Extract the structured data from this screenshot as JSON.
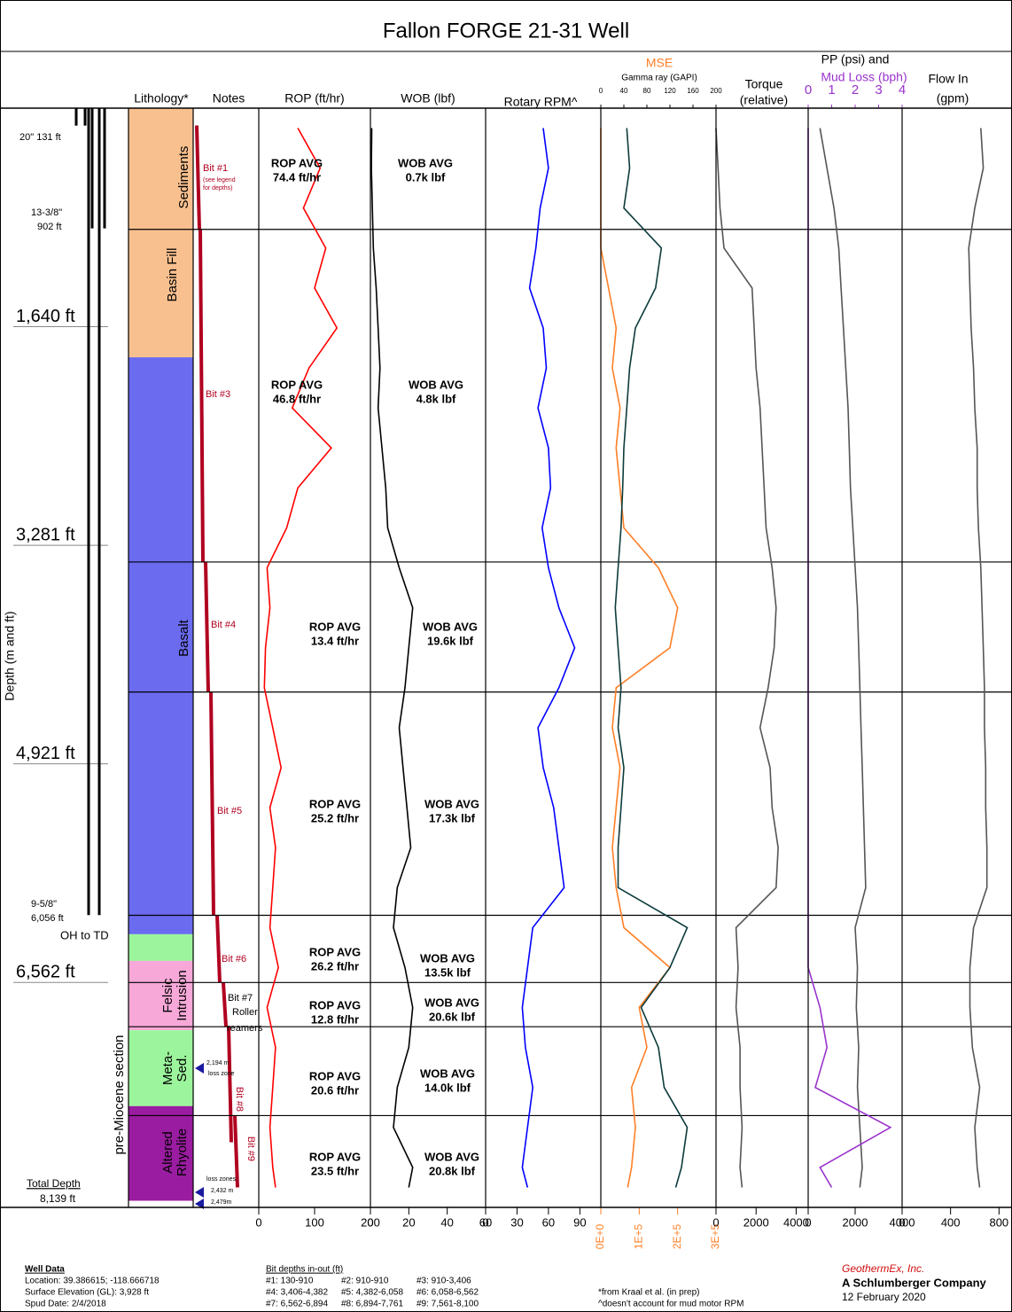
{
  "title": "Fallon FORGE 21-31 Well",
  "depth_axis": {
    "label": "Depth (m and ft)",
    "lim": [
      0,
      8250
    ],
    "ticks": [
      {
        "value": 1640,
        "label": "1,640 ft"
      },
      {
        "value": 3281,
        "label": "3,281 ft"
      },
      {
        "value": 4921,
        "label": "4,921 ft"
      },
      {
        "value": 6562,
        "label": "6,562 ft"
      }
    ],
    "values": [
      150,
      450,
      750,
      1050,
      1350,
      1650,
      1950,
      2250,
      2550,
      2850,
      3150,
      3450,
      3750,
      4050,
      4350,
      4650,
      4950,
      5250,
      5550,
      5850,
      6150,
      6450,
      6750,
      7050,
      7350,
      7650,
      7950,
      8100
    ]
  },
  "casing": [
    {
      "labels": [
        "20\" 131 ft"
      ],
      "depth": 131
    },
    {
      "labels": [
        "13-3/8\"",
        "902 ft"
      ],
      "depth": 902
    },
    {
      "labels": [
        "9-5/8\"",
        "6,056 ft"
      ],
      "depth": 6056
    }
  ],
  "open_hole": "OH to TD",
  "total_depth": [
    "Total Depth",
    "8,139 ft"
  ],
  "lithology": {
    "title": "Lithology*",
    "section": "pre-Miocene section",
    "units": [
      {
        "labels": [
          "Sediments",
          "Basin Fill"
        ],
        "top": 0,
        "bottom": 1870,
        "color": "#f9c08f"
      },
      {
        "labels": [
          "Basalt"
        ],
        "top": 1870,
        "bottom": 6200,
        "color": "#6b6bf0"
      },
      {
        "labels": [],
        "top": 6200,
        "bottom": 6400,
        "color": "#9cf59c"
      },
      {
        "labels": [
          "Felsic",
          "Intrusion"
        ],
        "top": 6400,
        "bottom": 6920,
        "color": "#f7a8d8"
      },
      {
        "labels": [
          "Meta-",
          "Sed."
        ],
        "top": 6920,
        "bottom": 7490,
        "color": "#9cf59c"
      },
      {
        "labels": [
          "Altered",
          "Rhyolite"
        ],
        "top": 7490,
        "bottom": 8200,
        "color": "#9a1ca0"
      }
    ]
  },
  "notes": {
    "title": "Notes",
    "color": "#b00020",
    "bit_runs": [
      [
        130,
        910
      ],
      [
        910,
        3406
      ],
      [
        3406,
        4382
      ],
      [
        4382,
        6058
      ],
      [
        6058,
        6562
      ],
      [
        6562,
        6894
      ],
      [
        6894,
        7761
      ],
      [
        7561,
        8100
      ]
    ],
    "texts": [
      "Bit #1",
      "(see legend",
      "for depths)",
      "Bit #3",
      "Bit #4",
      "Bit #5",
      "Bit #6",
      "Bit #7",
      "Roller",
      "reamers",
      "Bit #8",
      "Bit #9",
      "2,194 m",
      "loss zone",
      "loss zones:",
      "2,432 m",
      "2,479m"
    ]
  },
  "averages": [
    {
      "rop": [
        "ROP AVG",
        "74.4 ft/hr"
      ],
      "wob": [
        "WOB AVG",
        "0.7k lbf"
      ]
    },
    {
      "rop": [
        "ROP AVG",
        "46.8 ft/hr"
      ],
      "wob": [
        "WOB AVG",
        "4.8k lbf"
      ]
    },
    {
      "rop": [
        "ROP AVG",
        "13.4 ft/hr"
      ],
      "wob": [
        "WOB AVG",
        "19.6k lbf"
      ]
    },
    {
      "rop": [
        "ROP AVG",
        "25.2 ft/hr"
      ],
      "wob": [
        "WOB AVG",
        "17.3k lbf"
      ]
    },
    {
      "rop": [
        "ROP AVG",
        "26.2 ft/hr"
      ],
      "wob": [
        "WOB AVG",
        "13.5k lbf"
      ]
    },
    {
      "rop": [
        "ROP AVG",
        "12.8 ft/hr"
      ],
      "wob": [
        "WOB AVG",
        "20.6k lbf"
      ]
    },
    {
      "rop": [
        "ROP AVG",
        "20.6 ft/hr"
      ],
      "wob": [
        "WOB AVG",
        "14.0k lbf"
      ]
    },
    {
      "rop": [
        "ROP AVG",
        "23.5 ft/hr"
      ],
      "wob": [
        "WOB AVG",
        "20.8k lbf"
      ]
    }
  ],
  "chart_data": [
    {
      "type": "line",
      "title": "ROP (ft/hr)",
      "xlim": [
        0,
        200
      ],
      "xticks": [
        0,
        100,
        200
      ],
      "series": [
        {
          "color": "#ff0000",
          "values": [
            70,
            110,
            80,
            120,
            100,
            140,
            90,
            60,
            130,
            70,
            50,
            15,
            20,
            12,
            10,
            25,
            40,
            20,
            30,
            25,
            20,
            35,
            15,
            30,
            25,
            20,
            25,
            30
          ]
        }
      ]
    },
    {
      "type": "line",
      "title": "WOB (lbf)",
      "xlim": [
        0,
        60
      ],
      "xticks": [
        0,
        20,
        40,
        60
      ],
      "series": [
        {
          "color": "#000000",
          "values": [
            0.7,
            0.5,
            1,
            1.5,
            3,
            4,
            5,
            4,
            6,
            8,
            9,
            15,
            22,
            20,
            18,
            15,
            17,
            19,
            21,
            14,
            12,
            18,
            22,
            20,
            14,
            12,
            22,
            20
          ]
        }
      ]
    },
    {
      "type": "line",
      "title": "Rotary RPM^",
      "xlim": [
        0,
        110
      ],
      "xticks": [
        0,
        30,
        60,
        90
      ],
      "series": [
        {
          "color": "#0000ff",
          "values": [
            55,
            60,
            52,
            48,
            42,
            55,
            58,
            50,
            60,
            62,
            54,
            60,
            70,
            85,
            70,
            50,
            55,
            65,
            70,
            75,
            45,
            40,
            35,
            38,
            45,
            40,
            35,
            40
          ]
        }
      ]
    },
    {
      "type": "line",
      "xlim": [
        0,
        200
      ],
      "xticks": [
        0,
        40,
        80,
        120,
        160,
        200
      ],
      "x2lim": [
        0,
        300000
      ],
      "x2ticks": [
        {
          "value": 0,
          "label": "0E+0"
        },
        {
          "value": 100000,
          "label": "1E+5"
        },
        {
          "value": 200000,
          "label": "2E+5"
        },
        {
          "value": 300000,
          "label": "3E+5"
        }
      ],
      "series": [
        {
          "name": "MSE",
          "color": "#ff7f27",
          "axis": "x2",
          "values": [
            0,
            0,
            0,
            0,
            20000,
            40000,
            30000,
            50000,
            40000,
            50000,
            60000,
            150000,
            200000,
            180000,
            40000,
            30000,
            50000,
            40000,
            30000,
            40000,
            60000,
            180000,
            100000,
            120000,
            80000,
            90000,
            80000,
            70000
          ]
        },
        {
          "name": "Gamma ray (GAPI)",
          "color": "#0d3b3b",
          "values": [
            45,
            50,
            40,
            105,
            95,
            60,
            50,
            45,
            40,
            38,
            35,
            30,
            25,
            30,
            35,
            30,
            40,
            35,
            30,
            30,
            150,
            120,
            70,
            100,
            110,
            150,
            140,
            130
          ]
        }
      ]
    },
    {
      "type": "line",
      "title": [
        "Torque",
        "(relative)"
      ],
      "xlim": [
        0,
        4600
      ],
      "xticks": [
        0,
        2000,
        4000
      ],
      "series": [
        {
          "color": "#555555",
          "values": [
            0,
            100,
            200,
            400,
            1800,
            1900,
            2000,
            2200,
            2300,
            2400,
            2500,
            2800,
            3000,
            2900,
            2600,
            2200,
            2700,
            2800,
            3100,
            3000,
            1000,
            1100,
            1000,
            1200,
            1200,
            1300,
            1200,
            1300
          ]
        }
      ]
    },
    {
      "type": "line",
      "title": "PP (psi) and",
      "xlim": [
        0,
        4000
      ],
      "xticks": [
        0,
        2000,
        4000
      ],
      "x2lim": [
        0,
        4
      ],
      "x2ticks": [
        0,
        1,
        2,
        3,
        4
      ],
      "series": [
        {
          "color": "#555555",
          "values": [
            500,
            800,
            1100,
            1300,
            1400,
            1500,
            1600,
            1700,
            1750,
            1800,
            1900,
            2000,
            2100,
            2150,
            2200,
            2250,
            2300,
            2350,
            2400,
            2450,
            2000,
            2100,
            2050,
            2150,
            2100,
            2200,
            2300,
            2200
          ]
        },
        {
          "name": "Mud Loss (bph)",
          "color": "#9933cc",
          "axis": "x2",
          "values": [
            0,
            0,
            0,
            0,
            0,
            0,
            0,
            0,
            0,
            0,
            0,
            0,
            0,
            0,
            0,
            0,
            0,
            0,
            0,
            0,
            0,
            0,
            0.5,
            0.8,
            0.3,
            3.5,
            0.5,
            1
          ]
        }
      ]
    },
    {
      "type": "line",
      "title": [
        "Flow In",
        "(gpm)"
      ],
      "xlim": [
        0,
        900
      ],
      "xticks": [
        0,
        400,
        800
      ],
      "series": [
        {
          "color": "#555555",
          "values": [
            650,
            670,
            600,
            550,
            560,
            570,
            590,
            600,
            620,
            620,
            630,
            650,
            660,
            670,
            680,
            680,
            690,
            690,
            700,
            700,
            590,
            560,
            560,
            580,
            640,
            600,
            620,
            640
          ]
        }
      ]
    }
  ],
  "footer": {
    "well": [
      "Well Data",
      "Location: 39.386615; -118.666718",
      "Surface Elevation (GL): 3,928 ft",
      "Spud Date: 2/4/2018"
    ],
    "bits_title": "Bit depths in-out (ft)",
    "bits": [
      "#1: 130-910",
      "#2: 910-910",
      "#3: 910-3,406",
      "#4: 3,406-4,382",
      "#5: 4,382-6,058",
      "#6: 6,058-6,562",
      "#7: 6,562-6,894",
      "#8: 6,894-7,761",
      "#9: 7,561-8,100"
    ],
    "notes": [
      "*from Kraal et al. (in prep)",
      "^doesn't account for mud motor RPM"
    ],
    "company": [
      "GeothermEx, Inc.",
      "A Schlumberger Company",
      "12 February 2020"
    ]
  }
}
